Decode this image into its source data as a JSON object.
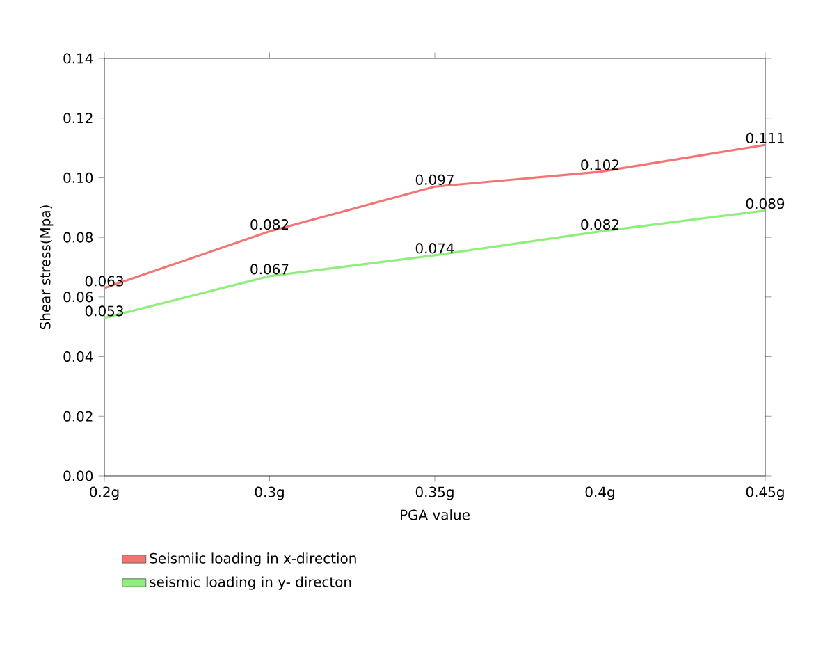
{
  "chart_data": {
    "type": "line",
    "xlabel": "PGA value",
    "ylabel": "Shear stress(Mpa)",
    "categories": [
      "0.2g",
      "0.3g",
      "0.35g",
      "0.4g",
      "0.45g"
    ],
    "series": [
      {
        "name": "Seismiic loading in x-direction",
        "color": "#f47474",
        "values": [
          0.063,
          0.082,
          0.097,
          0.102,
          0.111
        ]
      },
      {
        "name": "seismic loading in y- directon",
        "color": "#90ee7e",
        "values": [
          0.053,
          0.067,
          0.074,
          0.082,
          0.089
        ]
      }
    ],
    "ylim": [
      0,
      0.14
    ],
    "yticks": [
      {
        "value": 0,
        "label": "0.00"
      },
      {
        "value": 0.02,
        "label": "0.02"
      },
      {
        "value": 0.04,
        "label": "0.04"
      },
      {
        "value": 0.06,
        "label": "0.06"
      },
      {
        "value": 0.08,
        "label": "0.08"
      },
      {
        "value": 0.1,
        "label": "0.10"
      },
      {
        "value": 0.12,
        "label": "0.12"
      },
      {
        "value": 0.14,
        "label": "0.14"
      }
    ],
    "data_labels": true,
    "legend": "bottom",
    "grid": false,
    "marker": "none"
  }
}
